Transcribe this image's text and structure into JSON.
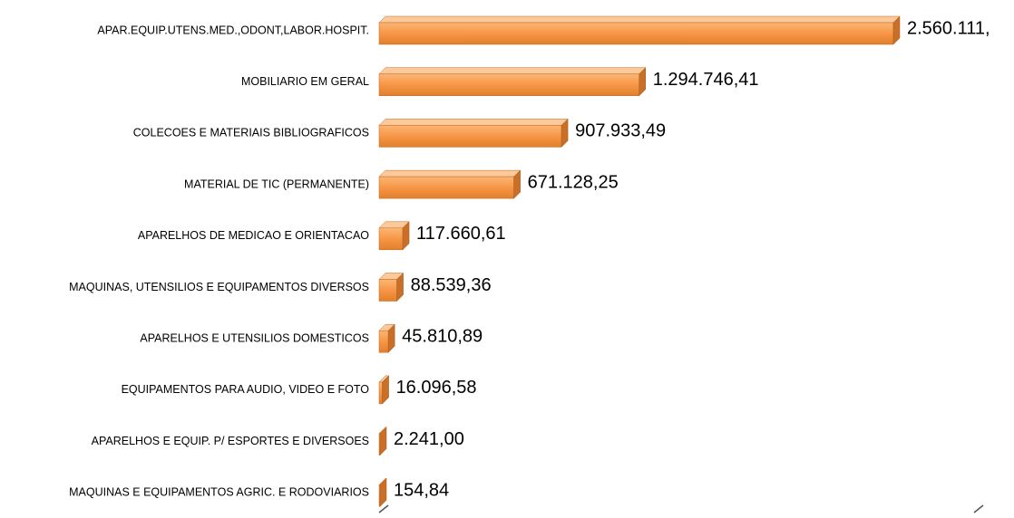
{
  "chart_data": {
    "type": "bar",
    "orientation": "horizontal",
    "color": "#f79646",
    "categories": [
      "APAR.EQUIP.UTENS.MED.,ODONT,LABOR.HOSPIT.",
      "MOBILIARIO EM GERAL",
      "COLECOES E MATERIAIS BIBLIOGRAFICOS",
      "MATERIAL DE TIC (PERMANENTE)",
      "APARELHOS DE MEDICAO E ORIENTACAO",
      "MAQUINAS, UTENSILIOS E EQUIPAMENTOS  DIVERSOS",
      "APARELHOS E UTENSILIOS DOMESTICOS",
      "EQUIPAMENTOS PARA AUDIO, VIDEO E FOTO",
      "APARELHOS E EQUIP. P/ ESPORTES E DIVERSOES",
      "MAQUINAS E EQUIPAMENTOS AGRIC. E  RODOVIARIOS"
    ],
    "values": [
      2560111,
      1294746.41,
      907933.49,
      671128.25,
      117660.61,
      88539.36,
      45810.89,
      16096.58,
      2241.0,
      154.84
    ],
    "value_labels": [
      "2.560.111,",
      "1.294.746,41",
      "907.933,49",
      "671.128,25",
      "117.660,61",
      "88.539,36",
      "45.810,89",
      "16.096,58",
      "2.241,00",
      "154,84"
    ]
  }
}
